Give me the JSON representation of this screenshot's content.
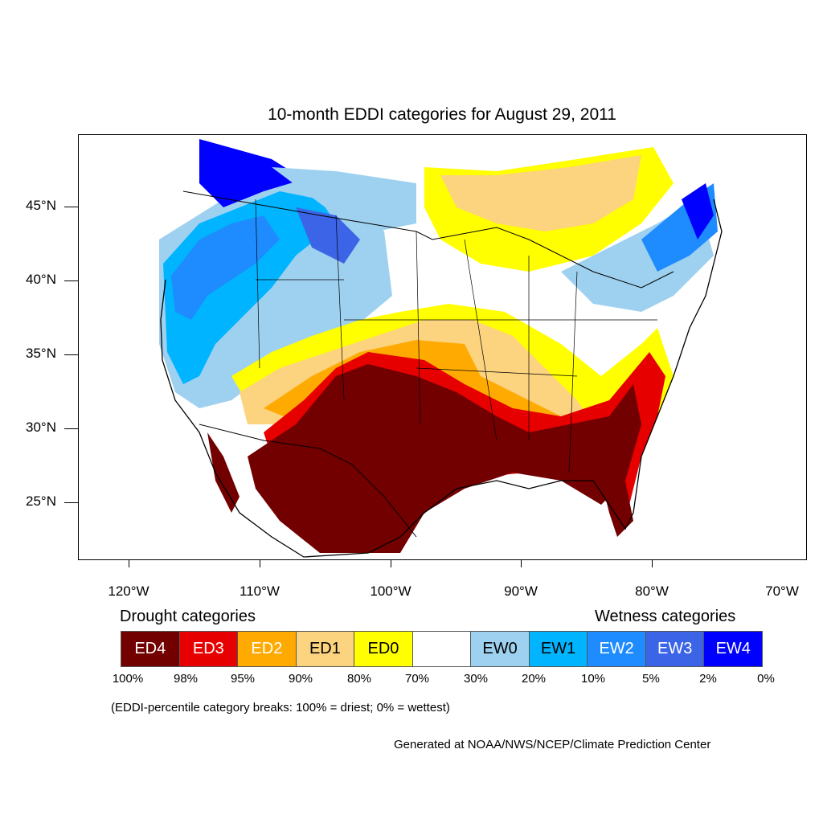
{
  "title": "10-month EDDI categories for August 29, 2011",
  "axes": {
    "x_ticks": [
      "120°W",
      "110°W",
      "100°W",
      "90°W",
      "80°W",
      "70°W"
    ],
    "y_ticks": [
      "45°N",
      "40°N",
      "35°N",
      "30°N",
      "25°N"
    ]
  },
  "legend": {
    "drought_heading": "Drought categories",
    "wetness_heading": "Wetness categories",
    "categories": [
      {
        "label": "ED4",
        "color": "#730000",
        "text_color": "#ffffff"
      },
      {
        "label": "ED3",
        "color": "#e60000",
        "text_color": "#ffffff"
      },
      {
        "label": "ED2",
        "color": "#ffaa00",
        "text_color": "#ffffff"
      },
      {
        "label": "ED1",
        "color": "#fcd37f",
        "text_color": "#000000"
      },
      {
        "label": "ED0",
        "color": "#ffff00",
        "text_color": "#000000"
      },
      {
        "label": "",
        "color": "#ffffff",
        "text_color": "#000000"
      },
      {
        "label": "EW0",
        "color": "#9ed1f0",
        "text_color": "#000000"
      },
      {
        "label": "EW1",
        "color": "#00b4ff",
        "text_color": "#000000"
      },
      {
        "label": "EW2",
        "color": "#1e8cff",
        "text_color": "#ffffff"
      },
      {
        "label": "EW3",
        "color": "#3c64e6",
        "text_color": "#ffffff"
      },
      {
        "label": "EW4",
        "color": "#0000ff",
        "text_color": "#ffffff"
      }
    ],
    "breaks": [
      "100%",
      "98%",
      "95%",
      "90%",
      "80%",
      "70%",
      "30%",
      "20%",
      "10%",
      "5%",
      "2%",
      "0%"
    ],
    "note": "(EDDI-percentile category breaks: 100% = driest; 0% = wettest)"
  },
  "credit": "Generated at NOAA/NWS/NCEP/Climate Prediction Center"
}
